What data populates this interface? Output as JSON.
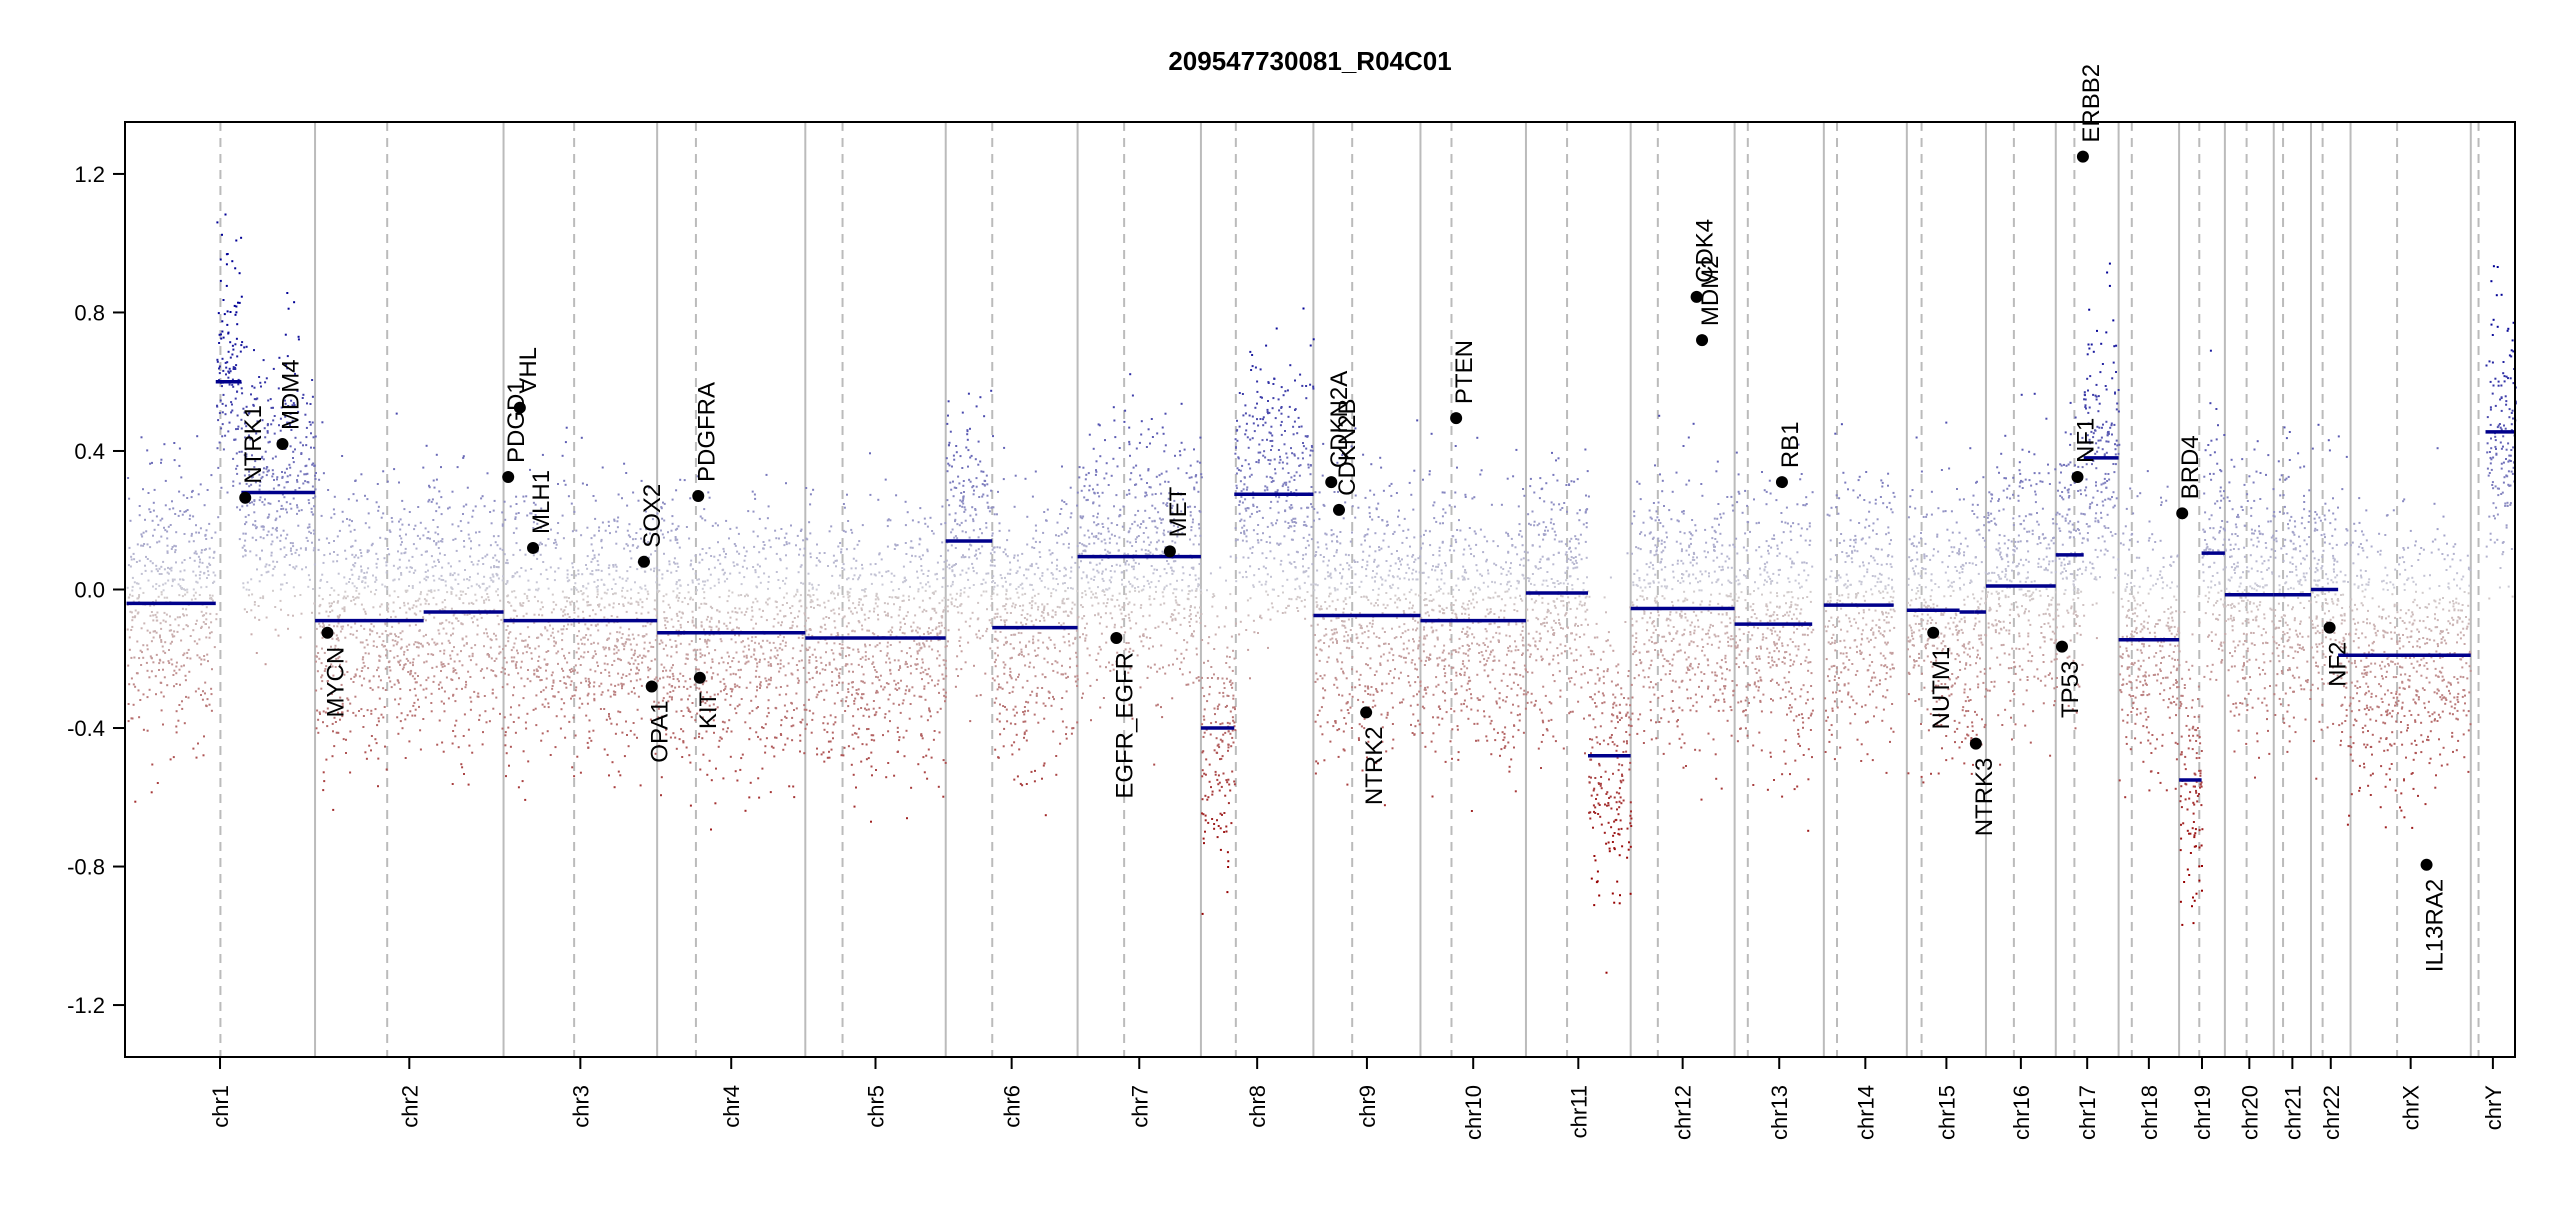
{
  "chart_data": {
    "type": "scatter",
    "title": "209547730081_R04C01",
    "ylim": [
      -1.35,
      1.35
    ],
    "y_ticks": [
      -1.2,
      -0.8,
      -0.4,
      0.0,
      0.4,
      0.8,
      1.2
    ],
    "y_tick_labels": [
      "-1.2",
      "-0.8",
      "-0.4",
      "0.0",
      "0.4",
      "0.8",
      "1.2"
    ],
    "grid": false,
    "colors": {
      "high": "#00008b",
      "low": "#8b0000",
      "neutral": "#cfcfcf",
      "segment": "#00008b",
      "gene": "#000000",
      "boundary": "#bbbbbb"
    },
    "chromosomes": [
      {
        "name": "chr1",
        "start": 0,
        "end": 245,
        "centromere": 123
      },
      {
        "name": "chr2",
        "start": 245,
        "end": 488,
        "centromere": 93
      },
      {
        "name": "chr3",
        "start": 488,
        "end": 686,
        "centromere": 91
      },
      {
        "name": "chr4",
        "start": 686,
        "end": 877,
        "centromere": 50
      },
      {
        "name": "chr5",
        "start": 877,
        "end": 1058,
        "centromere": 48
      },
      {
        "name": "chr6",
        "start": 1058,
        "end": 1228,
        "centromere": 60
      },
      {
        "name": "chr7",
        "start": 1228,
        "end": 1387,
        "centromere": 60
      },
      {
        "name": "chr8",
        "start": 1387,
        "end": 1532,
        "centromere": 45
      },
      {
        "name": "chr9",
        "start": 1532,
        "end": 1670,
        "centromere": 50
      },
      {
        "name": "chr10",
        "start": 1670,
        "end": 1806,
        "centromere": 40
      },
      {
        "name": "chr11",
        "start": 1806,
        "end": 1941,
        "centromere": 53
      },
      {
        "name": "chr12",
        "start": 1941,
        "end": 2075,
        "centromere": 35
      },
      {
        "name": "chr13",
        "start": 2075,
        "end": 2190,
        "centromere": 17
      },
      {
        "name": "chr14",
        "start": 2190,
        "end": 2297,
        "centromere": 17
      },
      {
        "name": "chr15",
        "start": 2297,
        "end": 2399,
        "centromere": 19
      },
      {
        "name": "chr16",
        "start": 2399,
        "end": 2489,
        "centromere": 36
      },
      {
        "name": "chr17",
        "start": 2489,
        "end": 2570,
        "centromere": 24
      },
      {
        "name": "chr18",
        "start": 2570,
        "end": 2648,
        "centromere": 17
      },
      {
        "name": "chr19",
        "start": 2648,
        "end": 2707,
        "centromere": 26
      },
      {
        "name": "chr20",
        "start": 2707,
        "end": 2770,
        "centromere": 28
      },
      {
        "name": "chr21",
        "start": 2770,
        "end": 2818,
        "centromere": 12
      },
      {
        "name": "chr22",
        "start": 2818,
        "end": 2869,
        "centromere": 15
      },
      {
        "name": "chrX",
        "start": 2869,
        "end": 3024,
        "centromere": 60
      },
      {
        "name": "chrY",
        "start": 3024,
        "end": 3081,
        "centromere": 10
      }
    ],
    "segments": [
      {
        "start": 2,
        "end": 117,
        "value": -0.04
      },
      {
        "start": 117,
        "end": 150,
        "value": 0.6
      },
      {
        "start": 150,
        "end": 245,
        "value": 0.28
      },
      {
        "start": 245,
        "end": 385,
        "value": -0.09
      },
      {
        "start": 385,
        "end": 488,
        "value": -0.065
      },
      {
        "start": 488,
        "end": 686,
        "value": -0.09
      },
      {
        "start": 686,
        "end": 877,
        "value": -0.125
      },
      {
        "start": 877,
        "end": 1058,
        "value": -0.14
      },
      {
        "start": 1058,
        "end": 1118,
        "value": 0.14
      },
      {
        "start": 1118,
        "end": 1228,
        "value": -0.11
      },
      {
        "start": 1228,
        "end": 1387,
        "value": 0.095
      },
      {
        "start": 1387,
        "end": 1430,
        "value": -0.4
      },
      {
        "start": 1430,
        "end": 1532,
        "value": 0.275
      },
      {
        "start": 1532,
        "end": 1670,
        "value": -0.075
      },
      {
        "start": 1670,
        "end": 1806,
        "value": -0.09
      },
      {
        "start": 1806,
        "end": 1886,
        "value": -0.01
      },
      {
        "start": 1886,
        "end": 1941,
        "value": -0.48
      },
      {
        "start": 1941,
        "end": 2075,
        "value": -0.055
      },
      {
        "start": 2075,
        "end": 2175,
        "value": -0.1
      },
      {
        "start": 2190,
        "end": 2280,
        "value": -0.045
      },
      {
        "start": 2297,
        "end": 2365,
        "value": -0.06
      },
      {
        "start": 2365,
        "end": 2384,
        "value": -0.065
      },
      {
        "start": 2384,
        "end": 2399,
        "value": -0.065
      },
      {
        "start": 2399,
        "end": 2489,
        "value": 0.01
      },
      {
        "start": 2489,
        "end": 2525,
        "value": 0.1
      },
      {
        "start": 2525,
        "end": 2570,
        "value": 0.38
      },
      {
        "start": 2570,
        "end": 2648,
        "value": -0.145
      },
      {
        "start": 2648,
        "end": 2677,
        "value": -0.55
      },
      {
        "start": 2677,
        "end": 2707,
        "value": 0.105
      },
      {
        "start": 2707,
        "end": 2770,
        "value": -0.015
      },
      {
        "start": 2770,
        "end": 2818,
        "value": -0.015
      },
      {
        "start": 2818,
        "end": 2853,
        "value": 0.0
      },
      {
        "start": 2853,
        "end": 3024,
        "value": -0.19
      },
      {
        "start": 3043,
        "end": 3081,
        "value": 0.455
      }
    ],
    "genes": [
      {
        "name": "NTRK1",
        "pos": 155,
        "value": 0.265
      },
      {
        "name": "MDM4",
        "pos": 203,
        "value": 0.42
      },
      {
        "name": "MYCN",
        "pos": 261,
        "value": -0.125
      },
      {
        "name": "PDGD1",
        "pos": 494,
        "value": 0.325
      },
      {
        "name": "VHL",
        "pos": 509,
        "value": 0.525
      },
      {
        "name": "MLH1",
        "pos": 526,
        "value": 0.12
      },
      {
        "name": "SOX2",
        "pos": 669,
        "value": 0.08
      },
      {
        "name": "OPA1",
        "pos": 679,
        "value": -0.28
      },
      {
        "name": "PDGFRA",
        "pos": 739,
        "value": 0.27
      },
      {
        "name": "KIT",
        "pos": 741,
        "value": -0.255
      },
      {
        "name": "EGFR_EGFR",
        "pos": 1278,
        "value": -0.14
      },
      {
        "name": "MET",
        "pos": 1347,
        "value": 0.11
      },
      {
        "name": "CDK4",
        "pos": 2026,
        "value": 0.845
      },
      {
        "name": "MDM2",
        "pos": 2033,
        "value": 0.72
      },
      {
        "name": "CDKN2A",
        "pos": 1555,
        "value": 0.31
      },
      {
        "name": "CDKN2B",
        "pos": 1565,
        "value": 0.23
      },
      {
        "name": "NTRK2",
        "pos": 1600,
        "value": -0.355
      },
      {
        "name": "PTEN",
        "pos": 1716,
        "value": 0.495
      },
      {
        "name": "RB1",
        "pos": 2136,
        "value": 0.31
      },
      {
        "name": "NUTM1",
        "pos": 2331,
        "value": -0.125
      },
      {
        "name": "NTRK3",
        "pos": 2386,
        "value": -0.445
      },
      {
        "name": "TP53",
        "pos": 2497,
        "value": -0.165
      },
      {
        "name": "NF1",
        "pos": 2517,
        "value": 0.325
      },
      {
        "name": "ERBB2",
        "pos": 2524,
        "value": 1.25
      },
      {
        "name": "BRD4",
        "pos": 2652,
        "value": 0.22
      },
      {
        "name": "NF2",
        "pos": 2842,
        "value": -0.11
      },
      {
        "name": "IL13RA2",
        "pos": 2967,
        "value": -0.795
      }
    ]
  }
}
